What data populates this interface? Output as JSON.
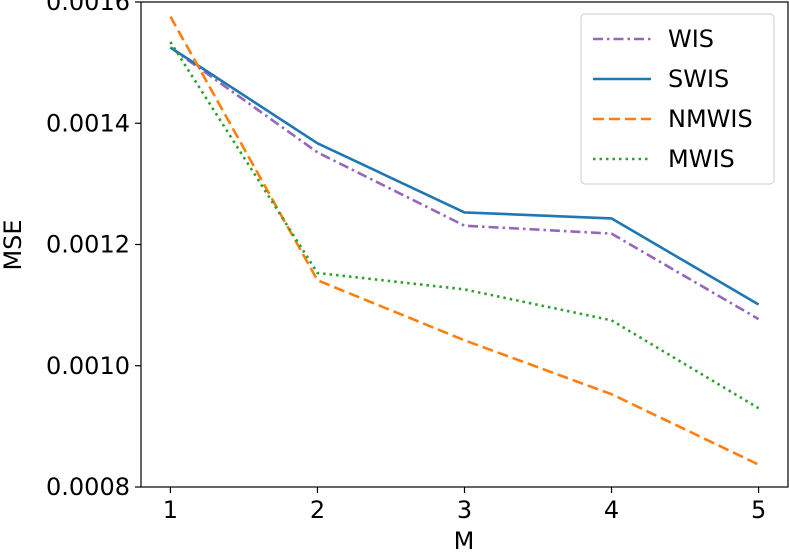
{
  "chart_data": {
    "type": "line",
    "xlabel": "M",
    "ylabel": "MSE",
    "x": [
      1,
      2,
      3,
      4,
      5
    ],
    "xlim": [
      0.8,
      5.2
    ],
    "ylim": [
      0.0008,
      0.0016
    ],
    "x_ticks": [
      1,
      2,
      3,
      4,
      5
    ],
    "x_tick_labels": [
      "1",
      "2",
      "3",
      "4",
      "5"
    ],
    "y_ticks": [
      0.0008,
      0.001,
      0.0012,
      0.0014,
      0.0016
    ],
    "y_tick_labels": [
      "0.0008",
      "0.0010",
      "0.0012",
      "0.0014",
      "0.0016"
    ],
    "grid": false,
    "legend_position": "top-right",
    "series": [
      {
        "name": "WIS",
        "color": "#9467bd",
        "style": "dashdot",
        "values": [
          0.001525,
          0.001352,
          0.001231,
          0.001218,
          0.001077
        ]
      },
      {
        "name": "SWIS",
        "color": "#1f77b4",
        "style": "solid",
        "values": [
          0.001525,
          0.001367,
          0.001253,
          0.001243,
          0.001101
        ]
      },
      {
        "name": "NMWIS",
        "color": "#ff7f0e",
        "style": "dashed",
        "values": [
          0.001576,
          0.001141,
          0.001042,
          0.000953,
          0.000837
        ]
      },
      {
        "name": "MWIS",
        "color": "#2ca02c",
        "style": "dotted",
        "values": [
          0.001534,
          0.001153,
          0.001126,
          0.001075,
          0.00093
        ]
      }
    ]
  }
}
